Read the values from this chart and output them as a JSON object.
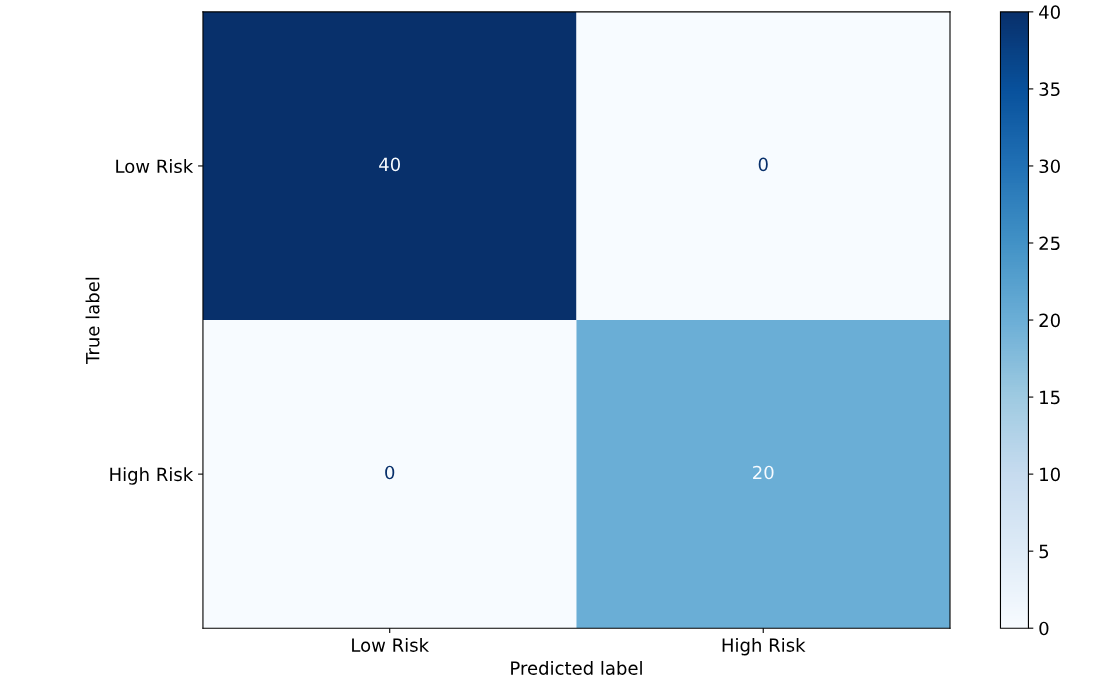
{
  "chart_data": {
    "type": "heatmap",
    "xlabel": "Predicted label",
    "ylabel": "True label",
    "categories": [
      "Low Risk",
      "High Risk"
    ],
    "y_categories": [
      "Low Risk",
      "High Risk"
    ],
    "cells": [
      [
        40,
        0
      ],
      [
        0,
        20
      ]
    ],
    "data_labels": true,
    "clim": [
      0,
      40
    ],
    "cticks": [
      0,
      5,
      10,
      15,
      20,
      25,
      30,
      35,
      40
    ]
  }
}
